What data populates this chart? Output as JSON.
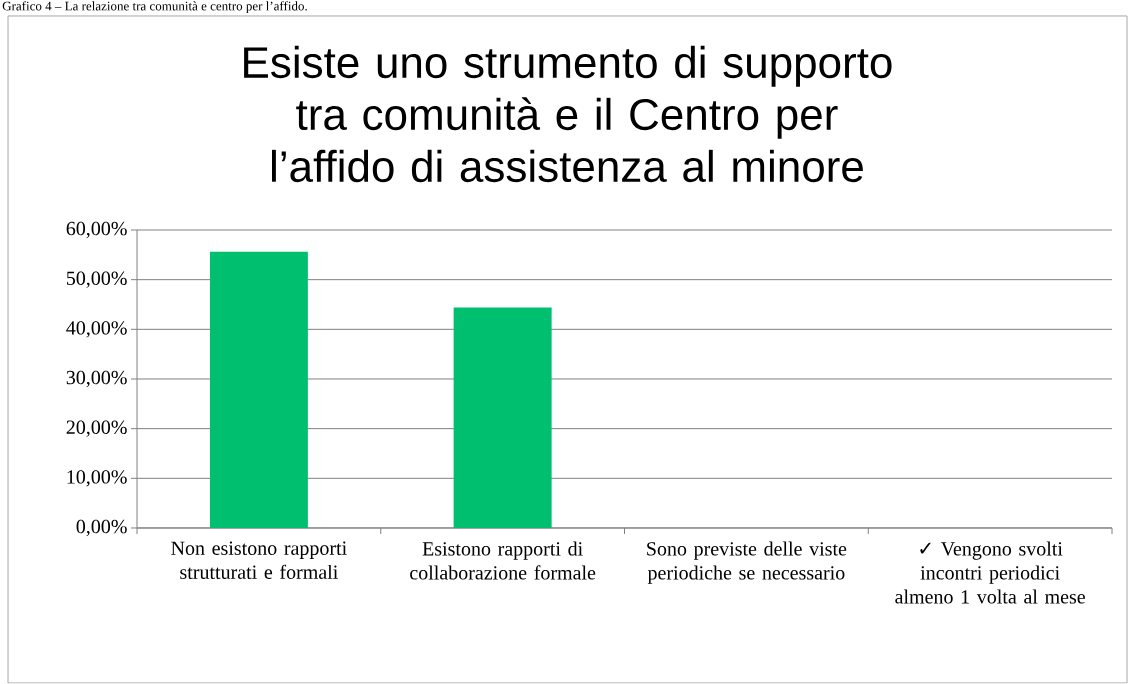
{
  "chart_data": {
    "type": "bar",
    "title": "Esiste uno strumento di supporto tra comunità e il Centro per l’affido di assistenza al minore",
    "annotations": [
      "Grafico 4 – La relazione tra comunità e centro per l’affido."
    ],
    "categories": [
      "Non esistono rapporti strutturati e formali",
      "Esistono rapporti di collaborazione formale",
      "Sono previste delle viste periodiche se necessario",
      "✓ Vengono svolti incontri periodici almeno 1 volta al mese"
    ],
    "values": [
      55.6,
      44.4,
      0,
      0
    ],
    "color": "#00bf6f",
    "ylim": [
      0,
      60
    ],
    "yticks": [
      {
        "value": 0,
        "label": "0,00%"
      },
      {
        "value": 10,
        "label": "10,00%"
      },
      {
        "value": 20,
        "label": "20,00%"
      },
      {
        "value": 30,
        "label": "30,00%"
      },
      {
        "value": 40,
        "label": "40,00%"
      },
      {
        "value": 50,
        "label": "50,00%"
      },
      {
        "value": 60,
        "label": "60,00%"
      }
    ],
    "grid": "y"
  }
}
